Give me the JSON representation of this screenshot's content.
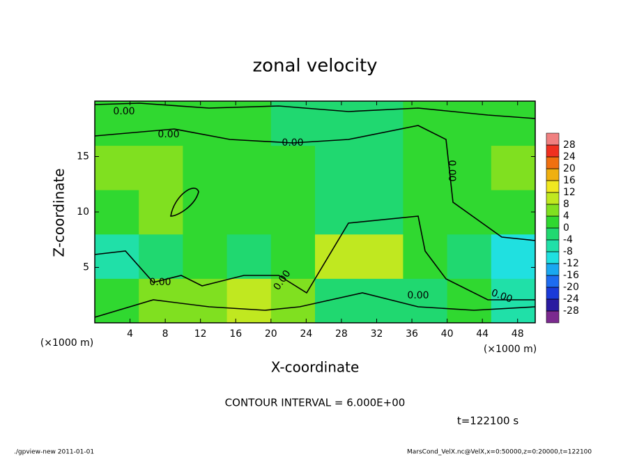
{
  "chart_data": {
    "type": "heatmap",
    "title": "zonal velocity",
    "x_label": "X-coordinate",
    "y_label": "Z-coordinate",
    "x_unit": "(×1000 m)",
    "xlim": [
      0,
      50
    ],
    "xticks": [
      4,
      8,
      12,
      16,
      20,
      24,
      28,
      32,
      36,
      40,
      44,
      48
    ],
    "ylim": [
      0,
      20
    ],
    "yticks": [
      5,
      10,
      15
    ],
    "x_edges": [
      0,
      5,
      10,
      15,
      20,
      25,
      30,
      35,
      40,
      45,
      50
    ],
    "y_edges": [
      0,
      4,
      8,
      12,
      16,
      20
    ],
    "z": [
      [
        2,
        4,
        6,
        8,
        4,
        -2,
        -4,
        -2,
        0,
        -6
      ],
      [
        -6,
        -2,
        2,
        -4,
        2,
        8,
        10,
        2,
        -4,
        -10
      ],
      [
        2,
        4,
        2,
        0,
        0,
        -2,
        -2,
        2,
        0,
        2
      ],
      [
        4,
        4,
        2,
        2,
        0,
        -2,
        -2,
        0,
        2,
        4
      ],
      [
        2,
        2,
        0,
        0,
        -2,
        -2,
        -2,
        0,
        0,
        0
      ]
    ],
    "levels": [
      -28,
      -24,
      -20,
      -16,
      -12,
      -8,
      -4,
      0,
      4,
      8,
      12,
      16,
      20,
      24,
      28
    ],
    "colors": [
      "#7b2a8f",
      "#2a1aa0",
      "#1a3ad8",
      "#1e6cf0",
      "#1aa8f0",
      "#20e0e0",
      "#20e0a8",
      "#20d870",
      "#30d830",
      "#80e020",
      "#c0e820",
      "#f0e820",
      "#f0b010",
      "#f07010",
      "#f03020",
      "#f08080"
    ],
    "contour_labels": [
      "0.00",
      "0.00",
      "0.00",
      "0.00",
      "0.00",
      "0.00",
      "0.00",
      "0.00"
    ],
    "contour_interval": "CONTOUR INTERVAL = 6.000E+00",
    "time": "t=122100 s",
    "footer_left": "./gpview-new  2011-01-01",
    "footer_right": "MarsCond_VelX.nc@VelX,x=0:50000,z=0:20000,t=122100"
  }
}
